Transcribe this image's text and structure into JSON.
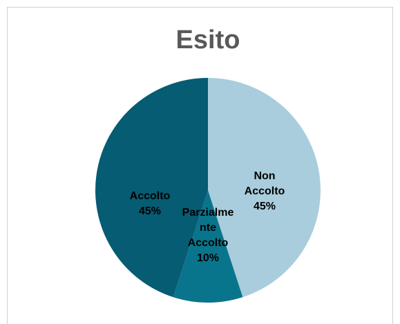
{
  "chart_data": {
    "type": "pie",
    "title": "Esito",
    "slices": [
      {
        "name": "Non Accolto",
        "value": 45,
        "label_lines": [
          "Non",
          "Accolto",
          "45%"
        ],
        "color": "#a9cddc",
        "text_color": "#000000"
      },
      {
        "name": "Parzialmente Accolto",
        "value": 10,
        "label_lines": [
          "Parzialme",
          "nte",
          "Accolto",
          "10%"
        ],
        "color": "#09758d",
        "text_color": "#000000"
      },
      {
        "name": "Accolto",
        "value": 45,
        "label_lines": [
          "Accolto",
          "45%"
        ],
        "color": "#065c72",
        "text_color": "#000000"
      }
    ],
    "legend": "none"
  }
}
